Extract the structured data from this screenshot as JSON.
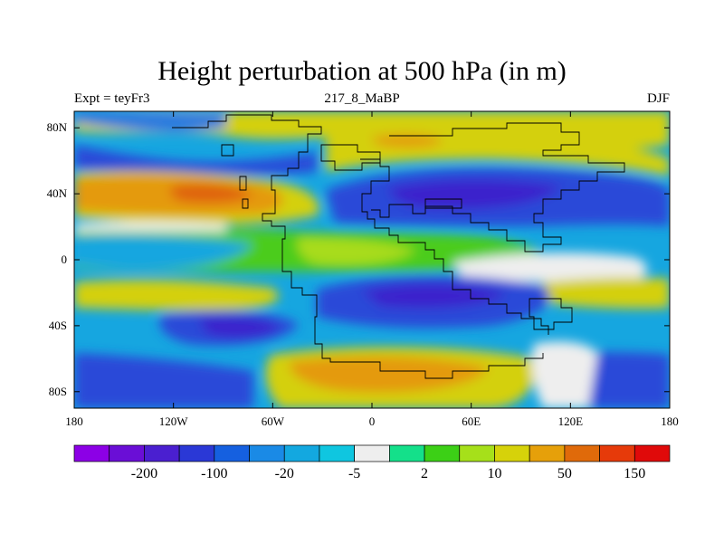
{
  "title": "Height perturbation at 500 hPa (in m)",
  "subtitle_left": "Expt = teyFr3",
  "subtitle_center": "217_8_MaBP",
  "subtitle_right": "DJF",
  "x_ticks": [
    {
      "lon": -180,
      "label": "180"
    },
    {
      "lon": -120,
      "label": "120W"
    },
    {
      "lon": -60,
      "label": "60W"
    },
    {
      "lon": 0,
      "label": "0"
    },
    {
      "lon": 60,
      "label": "60E"
    },
    {
      "lon": 120,
      "label": "120E"
    },
    {
      "lon": 180,
      "label": "180"
    }
  ],
  "y_ticks": [
    {
      "lat": 80,
      "label": "80N"
    },
    {
      "lat": 40,
      "label": "40N"
    },
    {
      "lat": 0,
      "label": "0"
    },
    {
      "lat": -40,
      "label": "40S"
    },
    {
      "lat": -80,
      "label": "80S"
    }
  ],
  "colorbar": {
    "colors": [
      "#8c00e6",
      "#6a0ed6",
      "#4a1fd0",
      "#2a38d6",
      "#1560e0",
      "#1a8ae6",
      "#13a8e0",
      "#0fc6e0",
      "#eeeeee",
      "#14e08a",
      "#3cd016",
      "#a6e01a",
      "#d6d20a",
      "#e6a00a",
      "#e06a0a",
      "#e63a0a",
      "#e00a0a"
    ],
    "tick_labels": [
      {
        "after_box": 2,
        "label": "-200"
      },
      {
        "after_box": 4,
        "label": "-100"
      },
      {
        "after_box": 6,
        "label": "-20"
      },
      {
        "after_box": 8,
        "label": "-5"
      },
      {
        "after_box": 10,
        "label": "2"
      },
      {
        "after_box": 12,
        "label": "10"
      },
      {
        "after_box": 14,
        "label": "50"
      },
      {
        "after_box": 16,
        "label": "150"
      }
    ]
  },
  "field_colors": {
    "strong_neg": "#3a22cc",
    "mid_neg": "#2a4ad8",
    "neg": "#1f78e0",
    "weak_neg": "#16a6e0",
    "near_zero": "#eeeeee",
    "weak_pos": "#18d88a",
    "pos": "#4ccc1c",
    "mid_pos": "#a8dc1e",
    "yellow": "#d4d010",
    "orange": "#e49a0c",
    "strong_pos": "#e0620a"
  }
}
